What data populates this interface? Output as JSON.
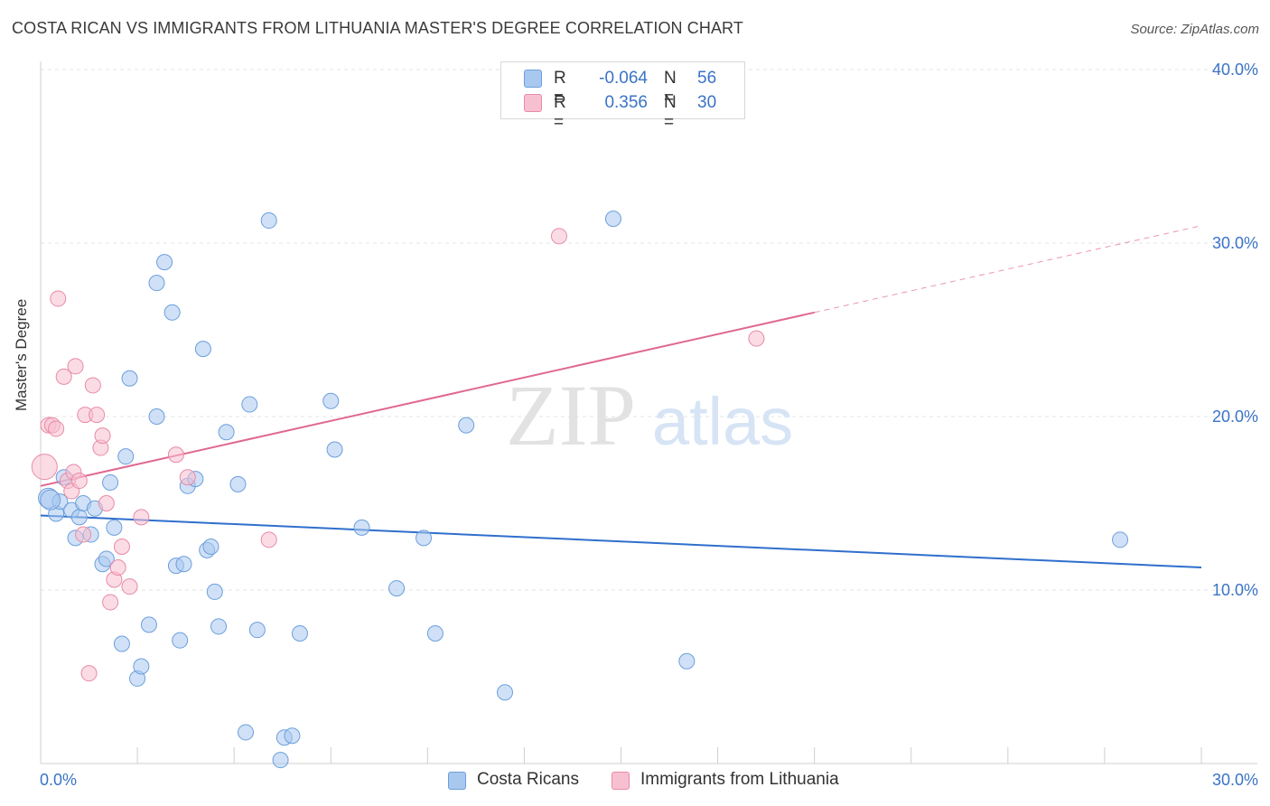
{
  "title": "COSTA RICAN VS IMMIGRANTS FROM LITHUANIA MASTER'S DEGREE CORRELATION CHART",
  "source": "Source: ZipAtlas.com",
  "watermark": {
    "zip": "ZIP",
    "atlas": "atlas"
  },
  "legend": {
    "rows": [
      {
        "r_label": "R =",
        "r_value": "-0.064",
        "n_label": "N =",
        "n_value": "56",
        "color": "#a9c8f0",
        "border": "#6b9fdb"
      },
      {
        "r_label": "R =",
        "r_value": "0.356",
        "n_label": "N =",
        "n_value": "30",
        "color": "#f7c0d0",
        "border": "#e88aa6"
      }
    ]
  },
  "bottom_legend": [
    {
      "label": "Costa Ricans",
      "color": "#a9c8f0",
      "border": "#6b9fdb"
    },
    {
      "label": "Immigrants from Lithuania",
      "color": "#f7c0d0",
      "border": "#e88aa6"
    }
  ],
  "chart_data": {
    "type": "scatter",
    "title": "COSTA RICAN VS IMMIGRANTS FROM LITHUANIA MASTER'S DEGREE CORRELATION CHART",
    "xlabel": "",
    "ylabel": "Master's Degree",
    "xlim": [
      0,
      30
    ],
    "ylim": [
      0,
      40
    ],
    "x_tick_labels": [
      "0.0%",
      "30.0%"
    ],
    "y_ticks": [
      10,
      20,
      30,
      40
    ],
    "y_tick_labels": [
      "10.0%",
      "20.0%",
      "30.0%",
      "40.0%"
    ],
    "grid": true,
    "series": [
      {
        "name": "Costa Ricans",
        "color": "#6b9fdb",
        "fill": "#a9c8f0",
        "line_color": "#2f6fcc",
        "trend": {
          "x0": 0,
          "y0": 14.3,
          "x1": 30,
          "y1": 11.3,
          "dashed_from": null
        },
        "points": [
          [
            0.2,
            15.3
          ],
          [
            0.4,
            14.4
          ],
          [
            0.5,
            15.1
          ],
          [
            0.6,
            16.5
          ],
          [
            0.8,
            14.6
          ],
          [
            0.9,
            13.0
          ],
          [
            1.0,
            14.2
          ],
          [
            1.1,
            15.0
          ],
          [
            1.3,
            13.2
          ],
          [
            1.4,
            14.7
          ],
          [
            1.6,
            11.5
          ],
          [
            1.7,
            11.8
          ],
          [
            1.8,
            16.2
          ],
          [
            1.9,
            13.6
          ],
          [
            2.1,
            6.9
          ],
          [
            2.2,
            17.7
          ],
          [
            2.3,
            22.2
          ],
          [
            2.5,
            4.9
          ],
          [
            2.6,
            5.6
          ],
          [
            2.8,
            8.0
          ],
          [
            3.0,
            20.0
          ],
          [
            3.0,
            27.7
          ],
          [
            3.2,
            28.9
          ],
          [
            3.4,
            26.0
          ],
          [
            3.5,
            11.4
          ],
          [
            3.6,
            7.1
          ],
          [
            3.7,
            11.5
          ],
          [
            3.8,
            16.0
          ],
          [
            4.0,
            16.4
          ],
          [
            4.2,
            23.9
          ],
          [
            4.3,
            12.3
          ],
          [
            4.4,
            12.5
          ],
          [
            4.5,
            9.9
          ],
          [
            4.6,
            7.9
          ],
          [
            4.8,
            19.1
          ],
          [
            5.1,
            16.1
          ],
          [
            5.3,
            1.8
          ],
          [
            5.4,
            20.7
          ],
          [
            5.6,
            7.7
          ],
          [
            5.9,
            31.3
          ],
          [
            6.2,
            0.2
          ],
          [
            6.3,
            1.5
          ],
          [
            6.5,
            1.6
          ],
          [
            6.7,
            7.5
          ],
          [
            7.5,
            20.9
          ],
          [
            7.6,
            18.1
          ],
          [
            8.3,
            13.6
          ],
          [
            9.2,
            10.1
          ],
          [
            9.9,
            13.0
          ],
          [
            10.2,
            7.5
          ],
          [
            11.0,
            19.5
          ],
          [
            12.0,
            4.1
          ],
          [
            14.8,
            31.4
          ],
          [
            16.7,
            5.9
          ],
          [
            27.9,
            12.9
          ],
          [
            0.25,
            15.2
          ]
        ]
      },
      {
        "name": "Immigrants from Lithuania",
        "color": "#e88aa6",
        "fill": "#f7c0d0",
        "line_color": "#e06890",
        "trend": {
          "x0": 0,
          "y0": 16.0,
          "x1": 30,
          "y1": 31.0,
          "dashed_from": 20.0
        },
        "points": [
          [
            0.1,
            17.1
          ],
          [
            0.2,
            19.5
          ],
          [
            0.3,
            19.5
          ],
          [
            0.4,
            19.3
          ],
          [
            0.45,
            26.8
          ],
          [
            0.6,
            22.3
          ],
          [
            0.7,
            16.3
          ],
          [
            0.8,
            15.7
          ],
          [
            0.85,
            16.8
          ],
          [
            0.9,
            22.9
          ],
          [
            1.0,
            16.3
          ],
          [
            1.1,
            13.2
          ],
          [
            1.15,
            20.1
          ],
          [
            1.25,
            5.2
          ],
          [
            1.35,
            21.8
          ],
          [
            1.45,
            20.1
          ],
          [
            1.55,
            18.2
          ],
          [
            1.6,
            18.9
          ],
          [
            1.7,
            15.0
          ],
          [
            1.8,
            9.3
          ],
          [
            1.9,
            10.6
          ],
          [
            2.0,
            11.3
          ],
          [
            2.1,
            12.5
          ],
          [
            2.3,
            10.2
          ],
          [
            2.6,
            14.2
          ],
          [
            3.5,
            17.8
          ],
          [
            3.8,
            16.5
          ],
          [
            5.9,
            12.9
          ],
          [
            13.4,
            30.4
          ],
          [
            18.5,
            24.5
          ]
        ]
      }
    ]
  }
}
